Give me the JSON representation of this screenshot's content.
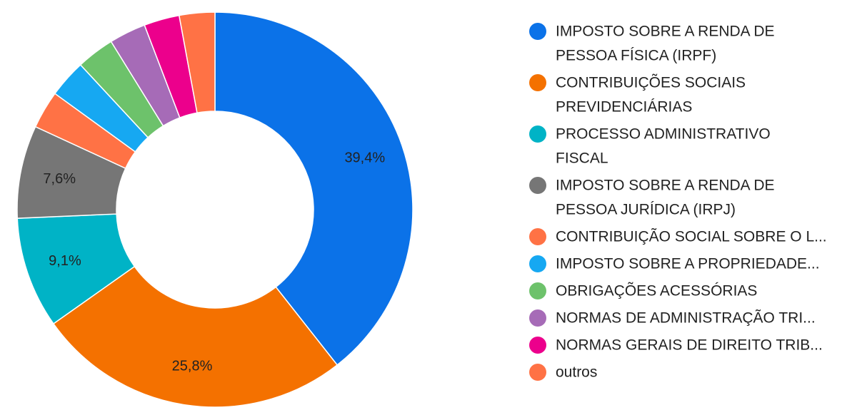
{
  "chart_data": {
    "type": "pie",
    "donut": true,
    "title": "",
    "legend_position": "right",
    "slices": [
      {
        "label": "IMPOSTO SOBRE A RENDA DE PESSOA FÍSICA (IRPF)",
        "legend_lines": [
          "IMPOSTO SOBRE A RENDA DE",
          "PESSOA FÍSICA (IRPF)"
        ],
        "value": 39.4,
        "display": "39,4%",
        "color": "#0b72e8"
      },
      {
        "label": "CONTRIBUIÇÕES SOCIAIS PREVIDENCIÁRIAS",
        "legend_lines": [
          "CONTRIBUIÇÕES SOCIAIS",
          "PREVIDENCIÁRIAS"
        ],
        "value": 25.8,
        "display": "25,8%",
        "color": "#f47100"
      },
      {
        "label": "PROCESSO ADMINISTRATIVO FISCAL",
        "legend_lines": [
          "PROCESSO ADMINISTRATIVO",
          "FISCAL"
        ],
        "value": 9.1,
        "display": "9,1%",
        "color": "#00b3c6"
      },
      {
        "label": "IMPOSTO SOBRE A RENDA DE PESSOA JURÍDICA (IRPJ)",
        "legend_lines": [
          "IMPOSTO SOBRE A RENDA DE",
          "PESSOA JURÍDICA (IRPJ)"
        ],
        "value": 7.6,
        "display": "7,6%",
        "color": "#767676"
      },
      {
        "label": "CONTRIBUIÇÃO SOCIAL SOBRE O L...",
        "legend_lines": [
          "CONTRIBUIÇÃO SOCIAL SOBRE O L..."
        ],
        "value": 3.1,
        "display": "",
        "color": "#ff7245"
      },
      {
        "label": "IMPOSTO SOBRE A PROPRIEDADE...",
        "legend_lines": [
          "IMPOSTO SOBRE A PROPRIEDADE..."
        ],
        "value": 3.1,
        "display": "",
        "color": "#16a8f2"
      },
      {
        "label": "OBRIGAÇÕES ACESSÓRIAS",
        "legend_lines": [
          "OBRIGAÇÕES ACESSÓRIAS"
        ],
        "value": 3.1,
        "display": "",
        "color": "#6dc26b"
      },
      {
        "label": "NORMAS DE ADMINISTRAÇÃO TRI...",
        "legend_lines": [
          "NORMAS DE ADMINISTRAÇÃO TRI..."
        ],
        "value": 3.0,
        "display": "",
        "color": "#a66bb7"
      },
      {
        "label": "NORMAS GERAIS DE DIREITO TRIB...",
        "legend_lines": [
          "NORMAS GERAIS DE DIREITO TRIB..."
        ],
        "value": 2.9,
        "display": "",
        "color": "#ec008c"
      },
      {
        "label": "outros",
        "legend_lines": [
          "outros"
        ],
        "value": 2.9,
        "display": "",
        "color": "#ff7245"
      }
    ]
  }
}
